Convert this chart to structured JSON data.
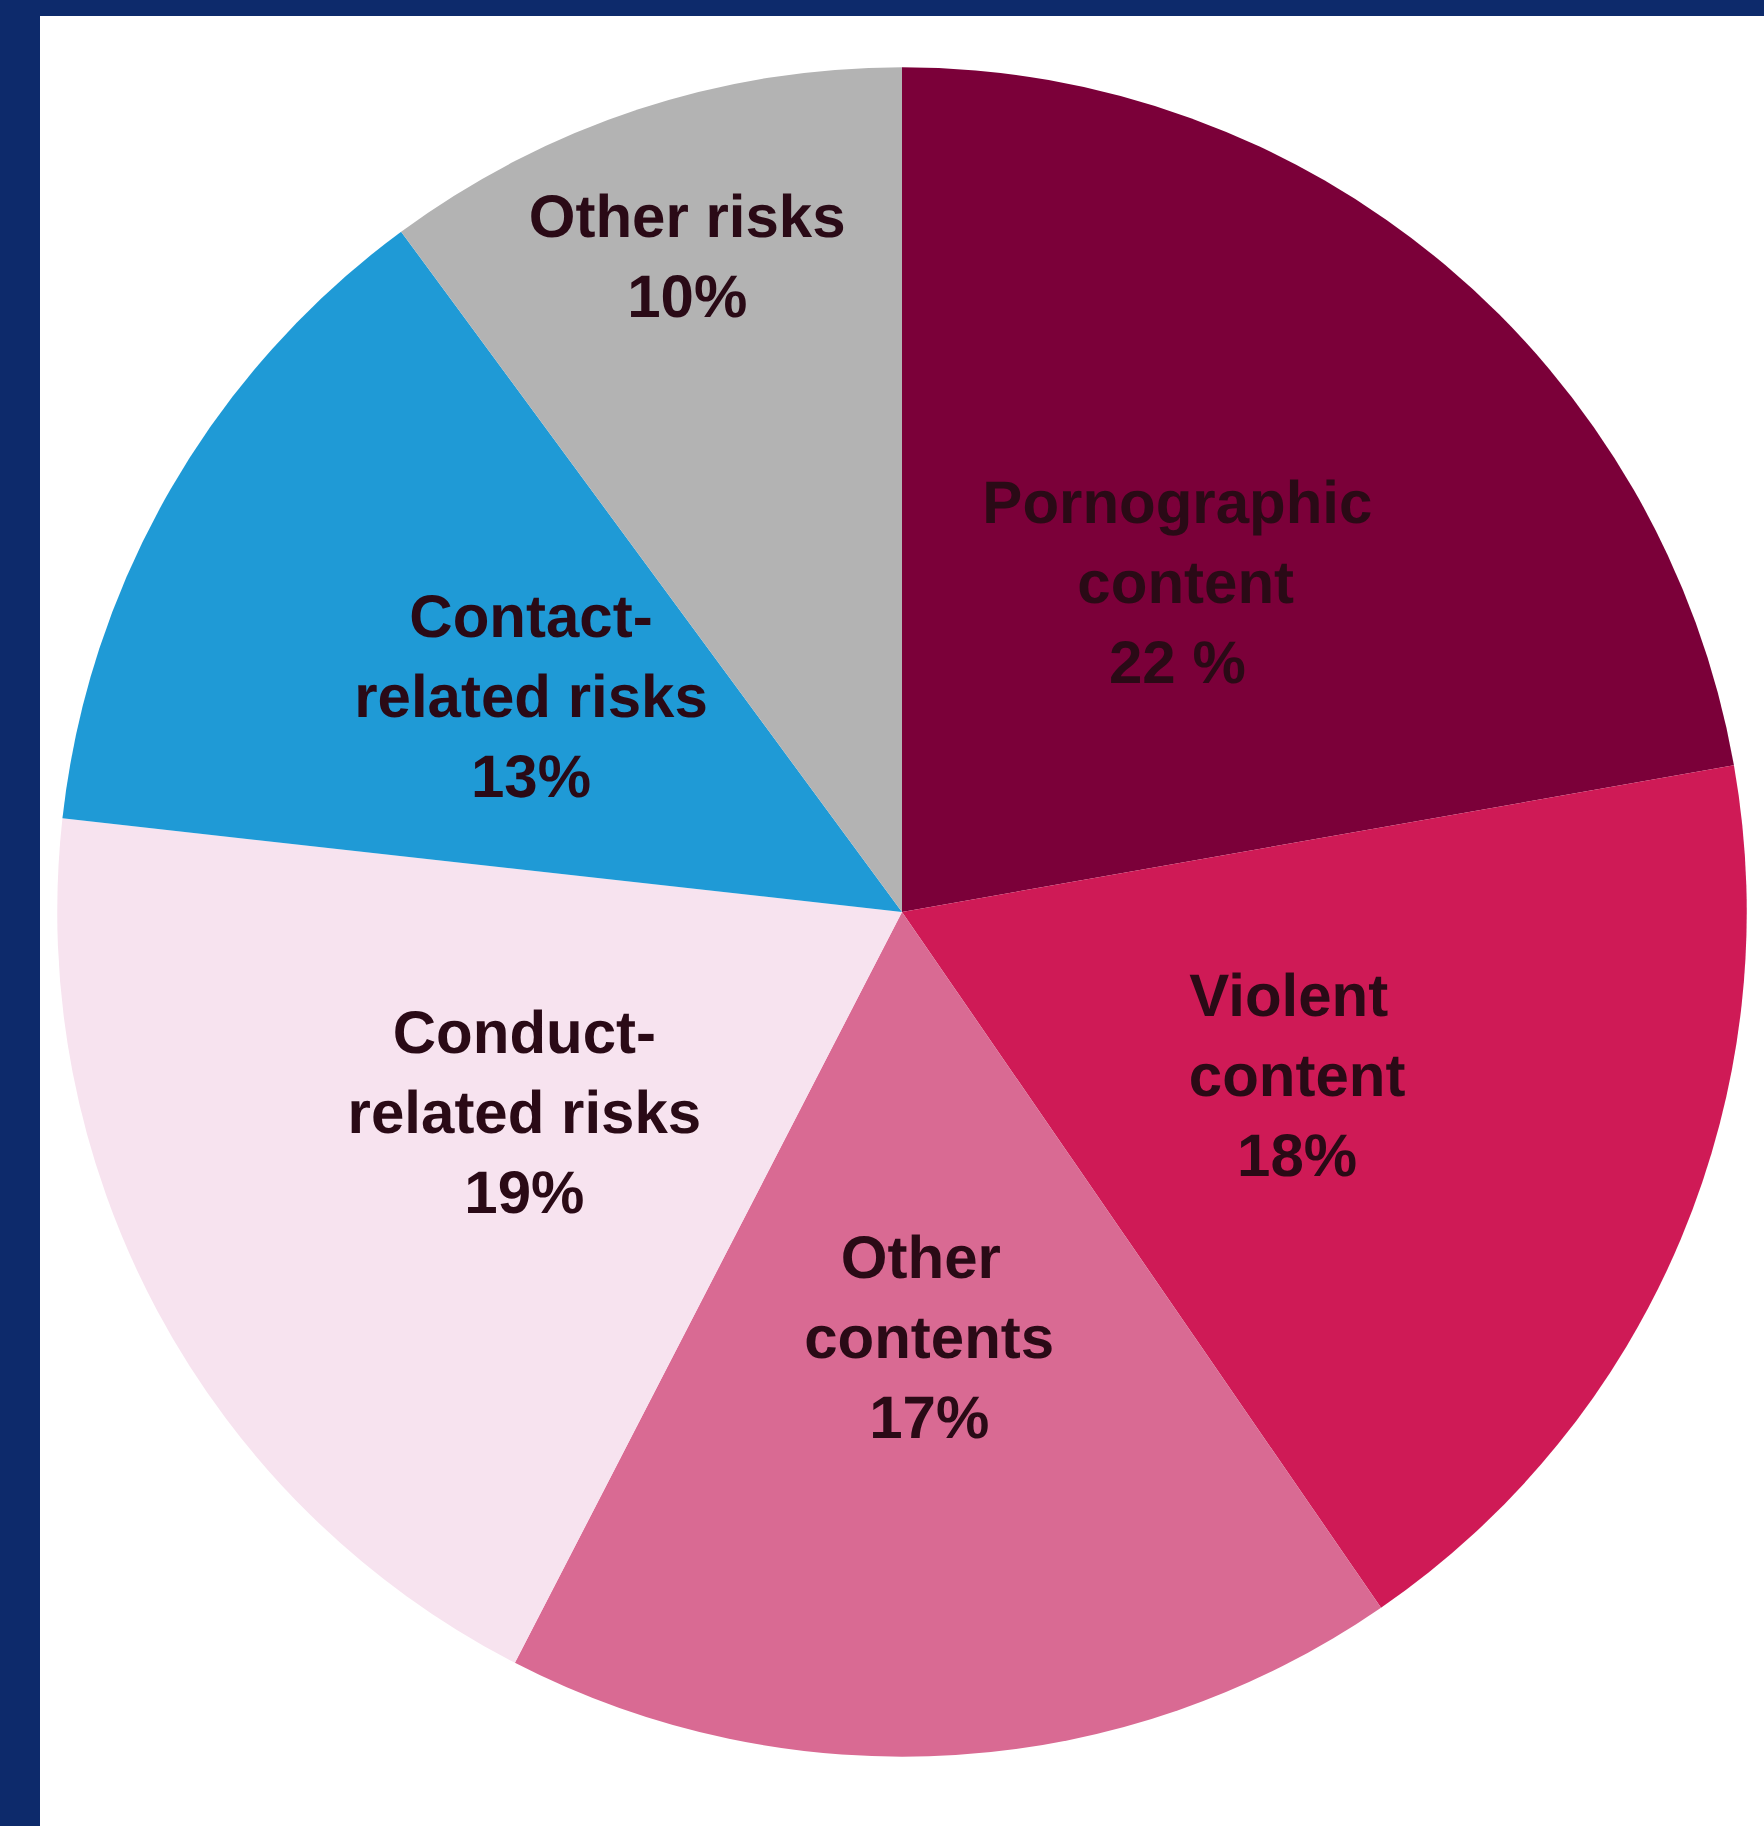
{
  "chart_data": {
    "type": "pie",
    "categories": [
      "Pornographic content",
      "Violent content",
      "Other contents",
      "Conduct-related risks",
      "Contact-related risks",
      "Other risks"
    ],
    "values": [
      22,
      18,
      17,
      19,
      13,
      10
    ],
    "value_labels": [
      "22 %",
      "18%",
      "17%",
      "19%",
      "13%",
      "10%"
    ],
    "colors": [
      "#7b0039",
      "#cf1a56",
      "#d96a93",
      "#f7e3ef",
      "#1f9ad6",
      "#b3b3b3"
    ],
    "legend": false
  }
}
